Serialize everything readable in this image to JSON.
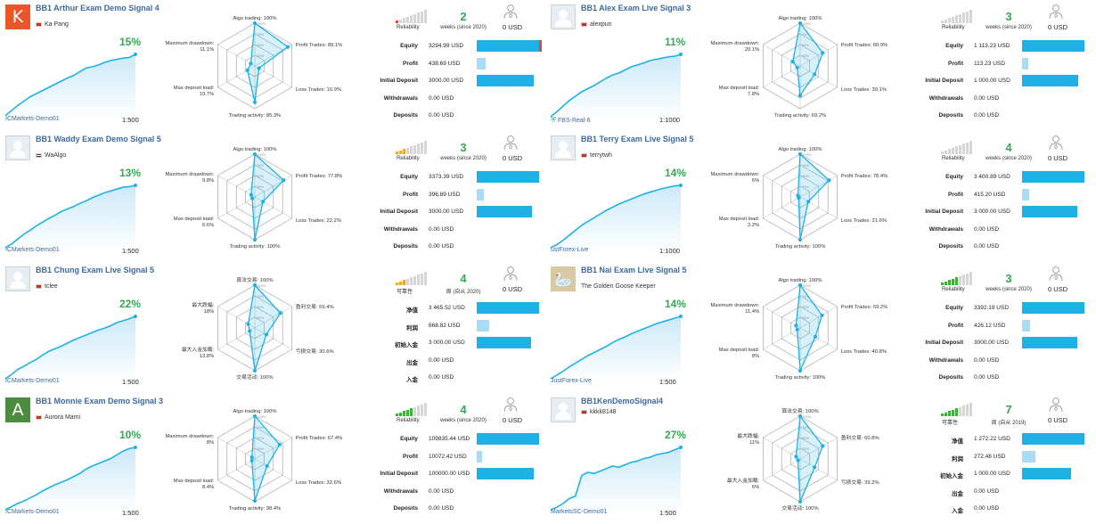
{
  "colors": {
    "accent": "#1fb1e6",
    "growth": "#34a853",
    "link": "#3b6aa0",
    "rel_off": "#d6d6d6"
  },
  "cards": [
    {
      "id": "c1",
      "col": 0,
      "row": 0,
      "avatar": {
        "type": "letter",
        "letter": "K",
        "color": "#e8562a"
      },
      "title": "BB1 Arthur Exam Demo Signal 4",
      "author": "Ka Pang",
      "flag": "hk",
      "growth": "15%",
      "broker": "ICMarkets-Demo01",
      "broker_verified": false,
      "leverage": "1:500",
      "spark": [
        0.02,
        0.1,
        0.18,
        0.25,
        0.32,
        0.37,
        0.42,
        0.47,
        0.52,
        0.57,
        0.62,
        0.66,
        0.72,
        0.78,
        0.8,
        0.83,
        0.87,
        0.9,
        0.92,
        0.94,
        0.95,
        1.0
      ],
      "radar": {
        "labels": [
          "Algo trading: 100%",
          "Profit Trades: 89.1%",
          "Loss Trades: 10.9%",
          "Trading activity: 85.3%",
          "Max deposit load: 19.7%",
          "Maximum drawdown: 11.1%"
        ],
        "values": [
          1.0,
          0.89,
          0.11,
          0.85,
          0.2,
          0.11
        ]
      },
      "reliability": {
        "label": "Reliability",
        "level": 1,
        "scheme": "red"
      },
      "weeks": "2",
      "weeks_label": "weeks (since 2020)",
      "subscribers": "0",
      "subs_text": "0 USD",
      "finance": [
        {
          "label": "Equity",
          "value": "3294.99 USD",
          "bar": 1.0,
          "red_end": true
        },
        {
          "label": "Profit",
          "value": "438.69 USD",
          "bar": 0.14
        },
        {
          "label": "Initial Deposit",
          "value": "3000.00 USD",
          "bar": 0.91
        },
        {
          "label": "Withdrawals",
          "value": "0.00 USD",
          "bar": 0
        },
        {
          "label": "Deposits",
          "value": "0.00 USD",
          "bar": 0
        }
      ]
    },
    {
      "id": "c2",
      "col": 1,
      "row": 0,
      "avatar": {
        "type": "person"
      },
      "title": "BB1 Alex Exam Live Signal 3",
      "author": "alexpun",
      "flag": "hk",
      "growth": "11%",
      "broker": "FBS-Real-6",
      "broker_verified": true,
      "leverage": "1:1000",
      "spark": [
        0.0,
        0.08,
        0.17,
        0.26,
        0.33,
        0.4,
        0.45,
        0.5,
        0.56,
        0.62,
        0.67,
        0.7,
        0.75,
        0.8,
        0.83,
        0.86,
        0.9,
        0.92,
        0.94,
        0.96,
        0.97,
        1.0
      ],
      "radar": {
        "labels": [
          "Algo trading: 100%",
          "Profit Trades: 60.9%",
          "Loss Trades: 39.1%",
          "Trading activity: 69.2%",
          "Max deposit load: 7.8%",
          "Maximum drawdown: 20.1%"
        ],
        "values": [
          1.0,
          0.61,
          0.39,
          0.69,
          0.08,
          0.2
        ]
      },
      "reliability": {
        "label": "Reliability",
        "level": 0,
        "scheme": "gray"
      },
      "weeks": "3",
      "weeks_label": "weeks (since 2020)",
      "subscribers": "0",
      "subs_text": "0 USD",
      "finance": [
        {
          "label": "Equity",
          "value": "1 113.23 USD",
          "bar": 1.0
        },
        {
          "label": "Profit",
          "value": "113.23 USD",
          "bar": 0.1
        },
        {
          "label": "Initial Deposit",
          "value": "1 000.00 USD",
          "bar": 0.9
        },
        {
          "label": "Withdrawals",
          "value": "0.00 USD",
          "bar": 0
        },
        {
          "label": "Deposits",
          "value": "0.00 USD",
          "bar": 0
        }
      ]
    },
    {
      "id": "c3",
      "col": 0,
      "row": 1,
      "avatar": {
        "type": "person"
      },
      "title": "BB1 Waddy Exam Demo Signal 5",
      "author": "WaAlgo",
      "flag": "us",
      "growth": "13%",
      "broker": "ICMarkets-Demo01",
      "broker_verified": false,
      "leverage": "1:500",
      "spark": [
        0.0,
        0.06,
        0.14,
        0.22,
        0.28,
        0.35,
        0.41,
        0.47,
        0.52,
        0.58,
        0.62,
        0.66,
        0.71,
        0.75,
        0.8,
        0.84,
        0.88,
        0.91,
        0.94,
        0.97,
        0.98,
        1.0
      ],
      "radar": {
        "labels": [
          "Algo trading: 100%",
          "Profit Trades: 77.8%",
          "Loss Trades: 22.2%",
          "Trading activity: 100%",
          "Max deposit load: 6.6%",
          "Maximum drawdown: 9.8%"
        ],
        "values": [
          1.0,
          0.78,
          0.22,
          1.0,
          0.07,
          0.1
        ]
      },
      "reliability": {
        "label": "Reliability",
        "level": 3,
        "scheme": "orange"
      },
      "weeks": "3",
      "weeks_label": "weeks (since 2020)",
      "subscribers": "0",
      "subs_text": "0 USD",
      "finance": [
        {
          "label": "Equity",
          "value": "3373.39 USD",
          "bar": 1.0
        },
        {
          "label": "Profit",
          "value": "396.89 USD",
          "bar": 0.12
        },
        {
          "label": "Initial Deposit",
          "value": "3000.00 USD",
          "bar": 0.89
        },
        {
          "label": "Withdrawals",
          "value": "0.00 USD",
          "bar": 0
        },
        {
          "label": "Deposits",
          "value": "0.00 USD",
          "bar": 0
        }
      ]
    },
    {
      "id": "c4",
      "col": 1,
      "row": 1,
      "avatar": {
        "type": "person"
      },
      "title": "BB1 Terry Exam Live Signal 5",
      "author": "terrytwh",
      "flag": "hk",
      "growth": "14%",
      "broker": "ustForex-Live",
      "broker_verified": false,
      "leverage": "1:1000",
      "spark": [
        0.0,
        0.05,
        0.12,
        0.2,
        0.28,
        0.36,
        0.42,
        0.48,
        0.54,
        0.6,
        0.65,
        0.7,
        0.74,
        0.78,
        0.82,
        0.86,
        0.89,
        0.92,
        0.95,
        0.97,
        0.99,
        1.0
      ],
      "radar": {
        "labels": [
          "Algo trading: 100%",
          "Profit Trades: 78.4%",
          "Loss Trades: 21.6%",
          "Trading activity: 100%",
          "Max deposit load: 2.2%",
          "Maximum drawdown: 6%"
        ],
        "values": [
          1.0,
          0.78,
          0.22,
          1.0,
          0.02,
          0.06
        ]
      },
      "reliability": {
        "label": "Reliability",
        "level": 0,
        "scheme": "gray"
      },
      "weeks": "4",
      "weeks_label": "weeks (since 2020)",
      "subscribers": "0",
      "subs_text": "0 USD",
      "finance": [
        {
          "label": "Equity",
          "value": "3 400.89 USD",
          "bar": 1.0
        },
        {
          "label": "Profit",
          "value": "415.20 USD",
          "bar": 0.12
        },
        {
          "label": "Initial Deposit",
          "value": "3 000.00 USD",
          "bar": 0.88
        },
        {
          "label": "Withdrawals",
          "value": "0.00 USD",
          "bar": 0
        },
        {
          "label": "Deposits",
          "value": "0.00 USD",
          "bar": 0
        }
      ]
    },
    {
      "id": "c5",
      "col": 0,
      "row": 2,
      "avatar": {
        "type": "person"
      },
      "title": "BB1 Chung Exam Live Signal 5",
      "author": "tclee",
      "flag": "hk",
      "growth": "22%",
      "broker": "ICMarkets-Demo01",
      "broker_verified": false,
      "leverage": "1:500",
      "spark": [
        0.0,
        0.07,
        0.15,
        0.2,
        0.26,
        0.31,
        0.38,
        0.44,
        0.48,
        0.52,
        0.57,
        0.62,
        0.66,
        0.7,
        0.74,
        0.78,
        0.81,
        0.85,
        0.9,
        0.93,
        0.96,
        1.0
      ],
      "radar": {
        "labels": [
          "算法交易: 100%",
          "盈利交易: 69.4%",
          "亏损交易: 30.6%",
          "交易活动: 100%",
          "最大入金加载: 13.8%",
          "最大跌幅: 18%"
        ],
        "values": [
          1.0,
          0.69,
          0.31,
          1.0,
          0.14,
          0.18
        ]
      },
      "reliability": {
        "label": "可靠性",
        "level": 3,
        "scheme": "orange"
      },
      "weeks": "4",
      "weeks_label": "周 (自从 2020)",
      "subscribers": "0",
      "subs_text": "0 USD",
      "finance": [
        {
          "label": "净值",
          "value": "3 465.52 USD",
          "bar": 1.0
        },
        {
          "label": "利润",
          "value": "668.82 USD",
          "bar": 0.2
        },
        {
          "label": "初始入金",
          "value": "3 000.00 USD",
          "bar": 0.87
        },
        {
          "label": "出金",
          "value": "0.00 USD",
          "bar": 0
        },
        {
          "label": "入金",
          "value": "0.00 USD",
          "bar": 0
        }
      ]
    },
    {
      "id": "c6",
      "col": 1,
      "row": 2,
      "avatar": {
        "type": "goose"
      },
      "title": "BB1 Nai Exam Live Signal 5",
      "author": "The Golden Goose Keeper",
      "flag": "",
      "growth": "14%",
      "broker": "JustForex-Live",
      "broker_verified": false,
      "leverage": "1:500",
      "spark": [
        0.0,
        0.06,
        0.12,
        0.19,
        0.25,
        0.31,
        0.37,
        0.42,
        0.47,
        0.52,
        0.58,
        0.63,
        0.67,
        0.72,
        0.76,
        0.8,
        0.84,
        0.88,
        0.91,
        0.94,
        0.97,
        1.0
      ],
      "radar": {
        "labels": [
          "Algo trading: 100%",
          "Profit Trades: 59.2%",
          "Loss Trades: 40.8%",
          "Trading activity: 100%",
          "Max deposit load: 8%",
          "Maximum drawdown: 11.4%"
        ],
        "values": [
          1.0,
          0.59,
          0.41,
          1.0,
          0.08,
          0.11
        ]
      },
      "reliability": {
        "label": "Reliability",
        "level": 5,
        "scheme": "green"
      },
      "weeks": "3",
      "weeks_label": "weeks (since 2020)",
      "subscribers": "0",
      "subs_text": "0 USD",
      "finance": [
        {
          "label": "Equity",
          "value": "3392.19 USD",
          "bar": 1.0
        },
        {
          "label": "Profit",
          "value": "426.12 USD",
          "bar": 0.13
        },
        {
          "label": "Initial Deposit",
          "value": "3000.00 USD",
          "bar": 0.88
        },
        {
          "label": "Withdrawals",
          "value": "0.00 USD",
          "bar": 0
        },
        {
          "label": "Deposits",
          "value": "0.00 USD",
          "bar": 0
        }
      ]
    },
    {
      "id": "c7",
      "col": 0,
      "row": 3,
      "avatar": {
        "type": "letter",
        "letter": "A",
        "color": "#4c8c3e"
      },
      "title": "BB1 Monnie Exam Demo Signal 3",
      "author": "Aurora Mami",
      "flag": "hk",
      "growth": "10%",
      "broker": "ICMarkets-Demo01",
      "broker_verified": false,
      "leverage": "1:500",
      "spark": [
        0.0,
        0.05,
        0.1,
        0.14,
        0.19,
        0.24,
        0.3,
        0.35,
        0.4,
        0.44,
        0.48,
        0.53,
        0.58,
        0.65,
        0.7,
        0.74,
        0.78,
        0.82,
        0.88,
        0.94,
        0.98,
        1.0
      ],
      "radar": {
        "labels": [
          "Algo trading: 100%",
          "Profit Trades: 67.4%",
          "Loss Trades: 32.6%",
          "Trading activity: 98.4%",
          "Max deposit load: 8.4%",
          "Maximum drawdown: 8%"
        ],
        "values": [
          1.0,
          0.67,
          0.33,
          0.98,
          0.08,
          0.08
        ]
      },
      "reliability": {
        "label": "Reliability",
        "level": 5,
        "scheme": "green"
      },
      "weeks": "4",
      "weeks_label": "weeks (since 2020)",
      "subscribers": "0",
      "subs_text": "0 USD",
      "finance": [
        {
          "label": "Equity",
          "value": "109835.44 USD",
          "bar": 1.0
        },
        {
          "label": "Profit",
          "value": "10072.42 USD",
          "bar": 0.09
        },
        {
          "label": "Initial Deposit",
          "value": "100000.00 USD",
          "bar": 0.91
        },
        {
          "label": "Withdrawals",
          "value": "0.00 USD",
          "bar": 0
        },
        {
          "label": "Deposits",
          "value": "0.00 USD",
          "bar": 0
        }
      ]
    },
    {
      "id": "c8",
      "col": 1,
      "row": 3,
      "avatar": {
        "type": "person"
      },
      "title": "BB1KenDemoSignal4",
      "author": "kkkk8148",
      "flag": "hk",
      "growth": "27%",
      "broker": "MarketsSC-Demo01",
      "broker_verified": false,
      "leverage": "1:500",
      "spark": [
        0.0,
        0.04,
        0.1,
        0.18,
        0.22,
        0.55,
        0.6,
        0.58,
        0.62,
        0.66,
        0.7,
        0.68,
        0.72,
        0.76,
        0.78,
        0.82,
        0.84,
        0.88,
        0.9,
        0.92,
        0.96,
        1.0
      ],
      "radar": {
        "labels": [
          "算法交易: 100%",
          "盈利交易: 60.8%",
          "亏损交易: 39.2%",
          "交易活动: 100%",
          "最大入金加载: 6%",
          "最大跌幅: 11%"
        ],
        "values": [
          1.0,
          0.61,
          0.39,
          1.0,
          0.06,
          0.11
        ]
      },
      "reliability": {
        "label": "可靠性",
        "level": 5,
        "scheme": "green"
      },
      "weeks": "7",
      "weeks_label": "周 (自从 2019)",
      "subscribers": "0",
      "subs_text": "0 USD",
      "finance": [
        {
          "label": "净值",
          "value": "1 272.22 USD",
          "bar": 1.0
        },
        {
          "label": "利润",
          "value": "272.48 USD",
          "bar": 0.21
        },
        {
          "label": "初始入金",
          "value": "1 000.00 USD",
          "bar": 0.79
        },
        {
          "label": "出金",
          "value": "0.00 USD",
          "bar": 0
        },
        {
          "label": "入金",
          "value": "0.00 USD",
          "bar": 0
        }
      ]
    }
  ]
}
